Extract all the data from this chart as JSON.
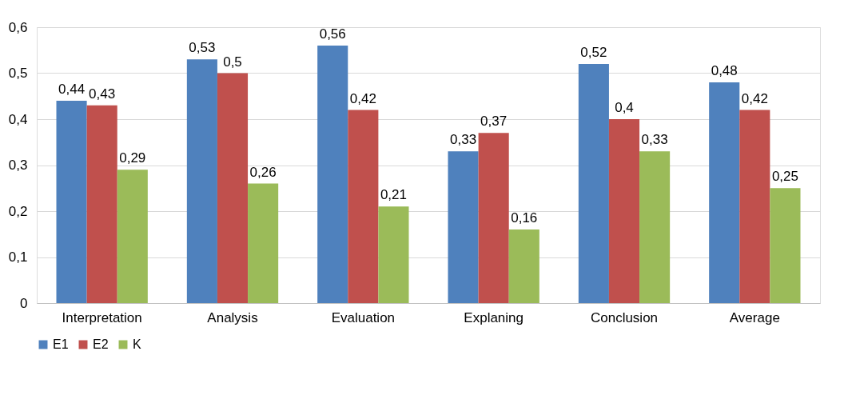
{
  "chart_data": {
    "type": "bar",
    "categories": [
      "Interpretation",
      "Analysis",
      "Evaluation",
      "Explaning",
      "Conclusion",
      "Average"
    ],
    "series": [
      {
        "name": "E1",
        "color": "#4f81bd",
        "values": [
          0.44,
          0.53,
          0.56,
          0.33,
          0.52,
          0.48
        ],
        "value_labels": [
          "0,44",
          "0,53",
          "0,56",
          "0,33",
          "0,52",
          "0,48"
        ]
      },
      {
        "name": "E2",
        "color": "#c0504d",
        "values": [
          0.43,
          0.5,
          0.42,
          0.37,
          0.4,
          0.42
        ],
        "value_labels": [
          "0,43",
          "0,5",
          "0,42",
          "0,37",
          "0,4",
          "0,42"
        ]
      },
      {
        "name": "K",
        "color": "#9bbb59",
        "values": [
          0.29,
          0.26,
          0.21,
          0.16,
          0.33,
          0.25
        ],
        "value_labels": [
          "0,29",
          "0,26",
          "0,21",
          "0,16",
          "0,33",
          "0,25"
        ]
      }
    ],
    "ylim": [
      0,
      0.6
    ],
    "yticks": [
      0,
      {
        "value": 0.1,
        "label": "0,1"
      },
      {
        "value": 0.2,
        "label": "0,2"
      },
      {
        "value": 0.3,
        "label": "0,3"
      },
      {
        "value": 0.4,
        "label": "0,4"
      },
      {
        "value": 0.5,
        "label": "0,5"
      },
      {
        "value": 0.6,
        "label": "0,6"
      }
    ],
    "grid": "y",
    "legend": "bottom"
  }
}
